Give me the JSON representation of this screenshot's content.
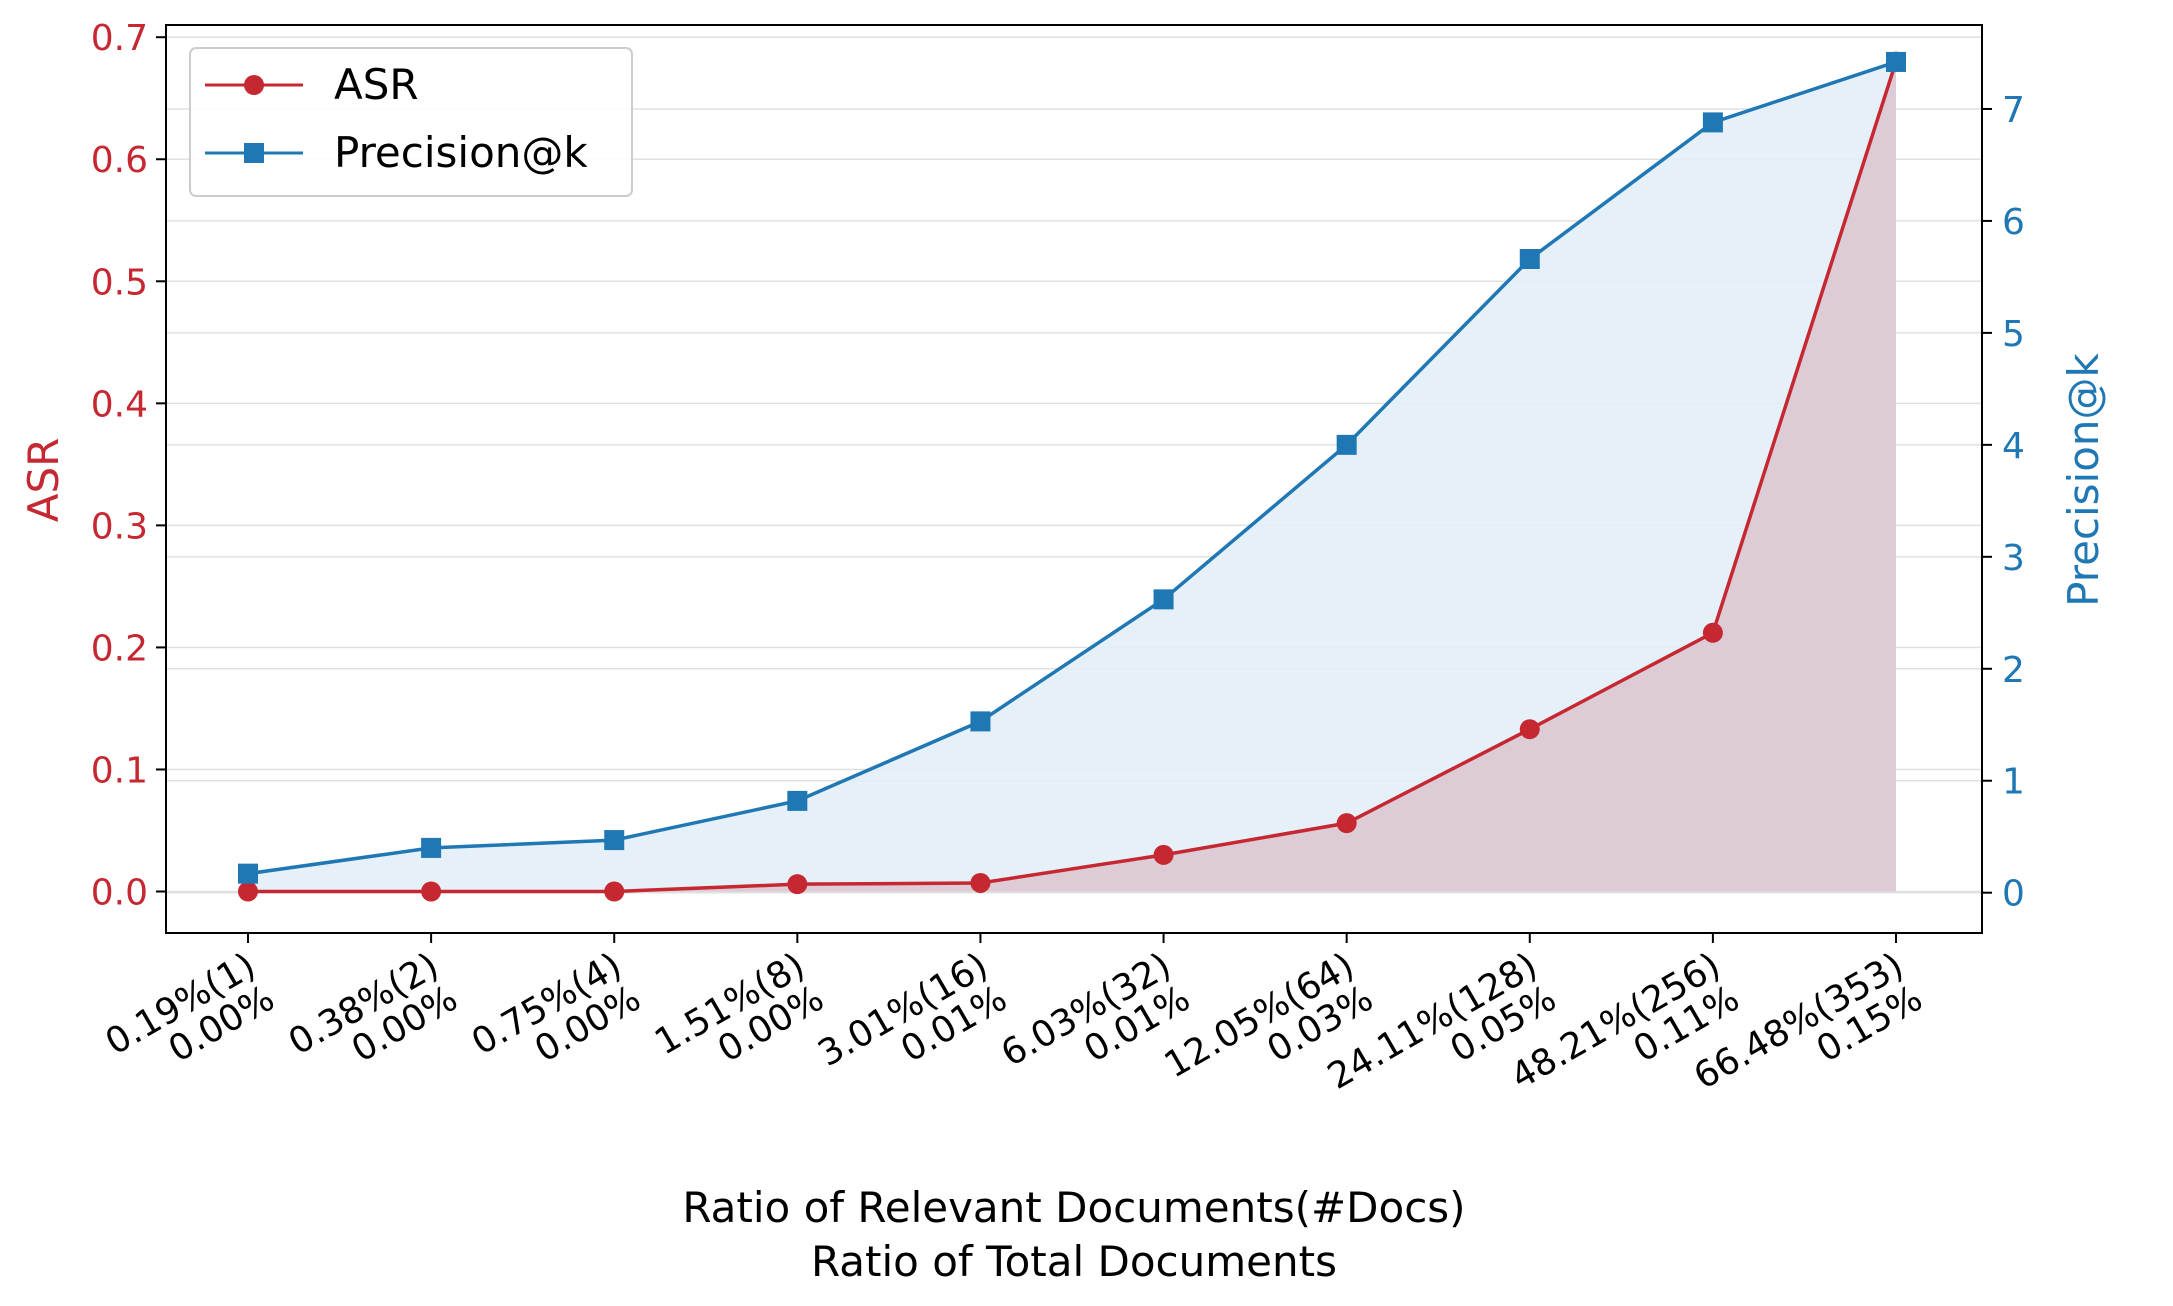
{
  "colors": {
    "asr": "#c62832",
    "precision": "#1f77b4",
    "asr_fill": "#dcc8d2",
    "precision_fill": "#e3eef8",
    "grid": "#e0e0e0"
  },
  "chart_data": {
    "type": "line",
    "categories": [
      [
        "0.19%(1)",
        "0.00%"
      ],
      [
        "0.38%(2)",
        "0.00%"
      ],
      [
        "0.75%(4)",
        "0.00%"
      ],
      [
        "1.51%(8)",
        "0.00%"
      ],
      [
        "3.01%(16)",
        "0.01%"
      ],
      [
        "6.03%(32)",
        "0.01%"
      ],
      [
        "12.05%(64)",
        "0.03%"
      ],
      [
        "24.11%(128)",
        "0.05%"
      ],
      [
        "48.21%(256)",
        "0.11%"
      ],
      [
        "66.48%(353)",
        "0.15%"
      ]
    ],
    "x": [
      0.19,
      0.38,
      0.75,
      1.51,
      3.01,
      6.03,
      12.05,
      24.11,
      48.21,
      66.48
    ],
    "series": [
      {
        "name": "ASR",
        "axis": "left",
        "marker": "circle",
        "values": [
          0.0,
          0.0,
          0.0,
          0.006,
          0.007,
          0.03,
          0.056,
          0.133,
          0.212,
          0.68
        ]
      },
      {
        "name": "Precision@k",
        "axis": "right",
        "marker": "square",
        "values": [
          0.17,
          0.4,
          0.47,
          0.82,
          1.53,
          2.62,
          4.0,
          5.66,
          6.88,
          7.42
        ]
      }
    ],
    "xlabel_lines": [
      "Ratio of Relevant Documents(#Docs)",
      "Ratio of Total Documents"
    ],
    "ylabel_left": "ASR",
    "ylabel_right": "Precision@k",
    "ylim_left": [
      -0.034,
      0.71
    ],
    "ylim_right": [
      -0.36,
      7.75
    ],
    "yticks_left": [
      "0.0",
      "0.1",
      "0.2",
      "0.3",
      "0.4",
      "0.5",
      "0.6",
      "0.7"
    ],
    "yticks_left_values": [
      0,
      0.1,
      0.2,
      0.3,
      0.4,
      0.5,
      0.6,
      0.7
    ],
    "yticks_right": [
      "0",
      "1",
      "2",
      "3",
      "4",
      "5",
      "6",
      "7"
    ],
    "yticks_right_values": [
      0,
      1,
      2,
      3,
      4,
      5,
      6,
      7
    ],
    "grid": true,
    "legend_position": "top-left"
  }
}
